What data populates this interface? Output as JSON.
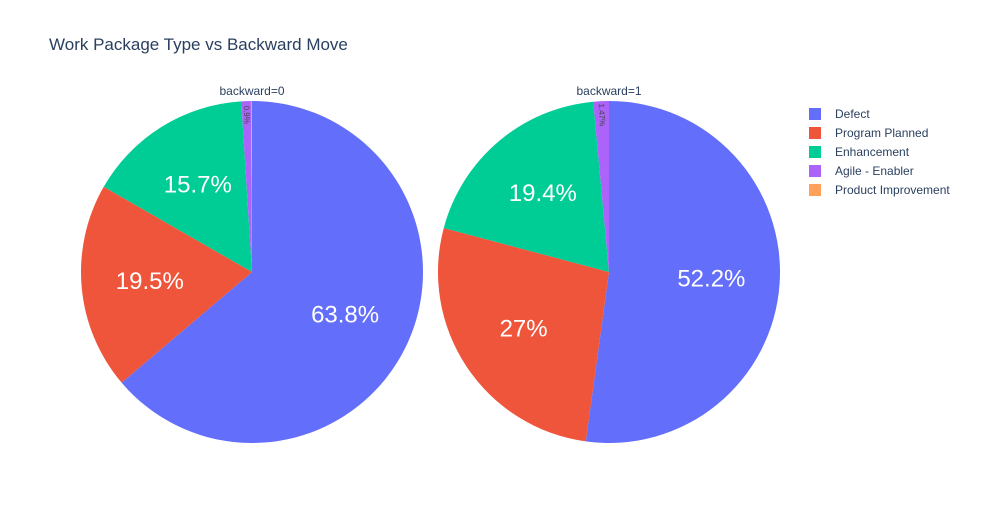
{
  "chart_data": {
    "type": "pie",
    "title": "Work Package Type vs Backward Move",
    "legend_position": "top-right",
    "categories": [
      "Defect",
      "Program Planned",
      "Enhancement",
      "Agile - Enabler",
      "Product Improvement"
    ],
    "colors": [
      "#636efa",
      "#ef553b",
      "#00cc96",
      "#ab63fa",
      "#ffa15a"
    ],
    "pies": [
      {
        "subtitle": "backward=0",
        "values": [
          63.8,
          19.5,
          15.7,
          0.9,
          0.1
        ],
        "labels": [
          "63.8%",
          "19.5%",
          "15.7%",
          "0.9%",
          ""
        ]
      },
      {
        "subtitle": "backward=1",
        "values": [
          52.2,
          27.0,
          19.4,
          1.47,
          0.0
        ],
        "labels": [
          "52.2%",
          "27%",
          "19.4%",
          "1.47%",
          ""
        ]
      }
    ]
  }
}
